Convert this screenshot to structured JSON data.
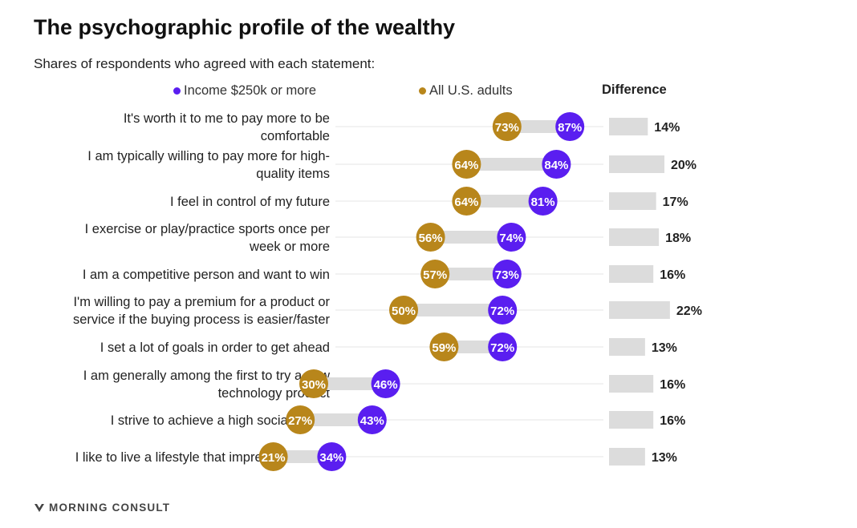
{
  "title": "The psychographic profile of the wealthy",
  "subtitle": "Shares of respondents who agreed with each statement:",
  "legend": {
    "income": "Income $250k or more",
    "all": "All U.S. adults",
    "difference": "Difference"
  },
  "colors": {
    "income": "#5a1ef0",
    "all": "#b8861b",
    "connector": "#dcdcdc",
    "diff_bar": "#dcdcdc",
    "row_line": "#e6e6e6"
  },
  "footer": {
    "brand": "MORNING CONSULT",
    "logo_icon": "morning-consult-logo-icon"
  },
  "chart_data": {
    "type": "dumbbell",
    "categories": [
      [
        "It's worth it to me to pay more to be",
        "comfortable"
      ],
      [
        "I am typically willing to pay more for high-",
        "quality items"
      ],
      [
        "I feel in control of my future"
      ],
      [
        "I exercise or play/practice sports once per",
        "week or more"
      ],
      [
        "I am a competitive person and want to win"
      ],
      [
        "I'm willing to pay a premium for a product or",
        "service if the buying process is easier/faster"
      ],
      [
        "I set a lot of goals in order to get ahead"
      ],
      [
        "I am generally among the first to try a new",
        "technology product"
      ],
      [
        "I strive to achieve a high social status"
      ],
      [
        "I like to live a lifestyle that impresses others"
      ]
    ],
    "series": [
      {
        "name": "Income $250k or more",
        "values": [
          87,
          84,
          81,
          74,
          73,
          72,
          72,
          46,
          43,
          34
        ]
      },
      {
        "name": "All U.S. adults",
        "values": [
          73,
          64,
          64,
          56,
          57,
          50,
          59,
          30,
          27,
          21
        ]
      }
    ],
    "difference": [
      14,
      20,
      17,
      18,
      16,
      22,
      13,
      16,
      16,
      13
    ],
    "unit": "%"
  }
}
